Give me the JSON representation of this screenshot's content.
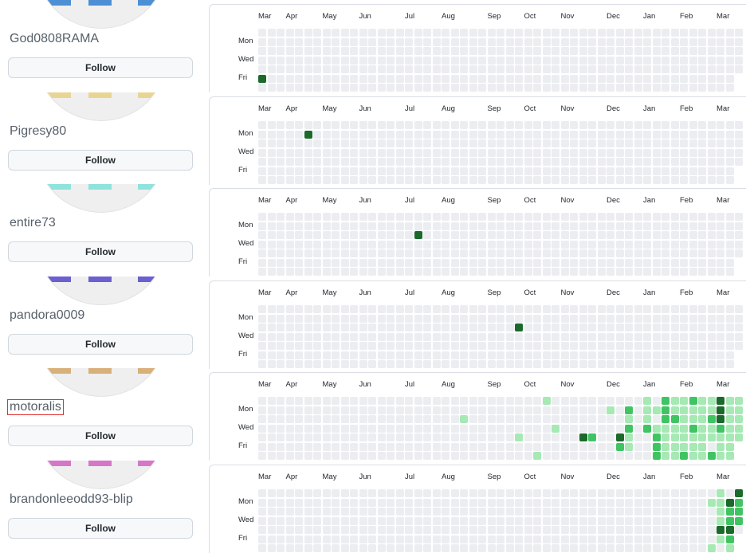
{
  "follow_label": "Follow",
  "day_labels": [
    {
      "row": 1,
      "label": "Mon"
    },
    {
      "row": 3,
      "label": "Wed"
    },
    {
      "row": 5,
      "label": "Fri"
    }
  ],
  "months": [
    {
      "col": 0,
      "label": "Mar"
    },
    {
      "col": 3,
      "label": "Apr"
    },
    {
      "col": 7,
      "label": "May"
    },
    {
      "col": 11,
      "label": "Jun"
    },
    {
      "col": 16,
      "label": "Jul"
    },
    {
      "col": 20,
      "label": "Aug"
    },
    {
      "col": 25,
      "label": "Sep"
    },
    {
      "col": 29,
      "label": "Oct"
    },
    {
      "col": 33,
      "label": "Nov"
    },
    {
      "col": 38,
      "label": "Dec"
    },
    {
      "col": 42,
      "label": "Jan"
    },
    {
      "col": 46,
      "label": "Feb"
    },
    {
      "col": 50,
      "label": "Mar"
    }
  ],
  "level_colors": [
    "#ebedf0",
    "#a6e9b4",
    "#40c463",
    "#1b6a2b"
  ],
  "users": [
    {
      "username": "God0808RAMA",
      "avatar_color": "#4d8fd4",
      "highlighted": false,
      "contributions": [
        [
          0,
          5,
          3
        ]
      ]
    },
    {
      "username": "Pigresy80",
      "avatar_color": "#e8d593",
      "highlighted": false,
      "contributions": [
        [
          5,
          1,
          3
        ]
      ]
    },
    {
      "username": "entire73",
      "avatar_color": "#8ee3dc",
      "highlighted": false,
      "contributions": [
        [
          17,
          2,
          3
        ]
      ]
    },
    {
      "username": "pandora0009",
      "avatar_color": "#6c5fd0",
      "highlighted": false,
      "contributions": [
        [
          28,
          2,
          3
        ]
      ]
    },
    {
      "username": "motoralis",
      "avatar_color": "#d8b07a",
      "highlighted": true,
      "contributions": [
        [
          31,
          0,
          1
        ],
        [
          42,
          0,
          1
        ],
        [
          44,
          0,
          2
        ],
        [
          45,
          0,
          1
        ],
        [
          46,
          0,
          1
        ],
        [
          47,
          0,
          2
        ],
        [
          48,
          0,
          1
        ],
        [
          49,
          0,
          1
        ],
        [
          50,
          0,
          3
        ],
        [
          51,
          0,
          1
        ],
        [
          52,
          0,
          1
        ],
        [
          38,
          1,
          1
        ],
        [
          40,
          1,
          2
        ],
        [
          42,
          1,
          1
        ],
        [
          43,
          1,
          1
        ],
        [
          44,
          1,
          2
        ],
        [
          45,
          1,
          1
        ],
        [
          46,
          1,
          1
        ],
        [
          47,
          1,
          1
        ],
        [
          48,
          1,
          1
        ],
        [
          49,
          1,
          1
        ],
        [
          50,
          1,
          3
        ],
        [
          51,
          1,
          1
        ],
        [
          52,
          1,
          1
        ],
        [
          22,
          2,
          1
        ],
        [
          40,
          2,
          1
        ],
        [
          42,
          2,
          1
        ],
        [
          44,
          2,
          2
        ],
        [
          45,
          2,
          2
        ],
        [
          46,
          2,
          1
        ],
        [
          47,
          2,
          1
        ],
        [
          48,
          2,
          1
        ],
        [
          49,
          2,
          2
        ],
        [
          50,
          2,
          3
        ],
        [
          51,
          2,
          1
        ],
        [
          52,
          2,
          1
        ],
        [
          32,
          3,
          1
        ],
        [
          40,
          3,
          2
        ],
        [
          42,
          3,
          2
        ],
        [
          43,
          3,
          1
        ],
        [
          44,
          3,
          1
        ],
        [
          45,
          3,
          1
        ],
        [
          46,
          3,
          1
        ],
        [
          47,
          3,
          2
        ],
        [
          48,
          3,
          1
        ],
        [
          49,
          3,
          1
        ],
        [
          50,
          3,
          2
        ],
        [
          51,
          3,
          1
        ],
        [
          52,
          3,
          1
        ],
        [
          28,
          4,
          1
        ],
        [
          35,
          4,
          3
        ],
        [
          36,
          4,
          2
        ],
        [
          39,
          4,
          3
        ],
        [
          40,
          4,
          1
        ],
        [
          43,
          4,
          2
        ],
        [
          44,
          4,
          1
        ],
        [
          45,
          4,
          1
        ],
        [
          46,
          4,
          1
        ],
        [
          47,
          4,
          1
        ],
        [
          48,
          4,
          1
        ],
        [
          49,
          4,
          1
        ],
        [
          50,
          4,
          1
        ],
        [
          51,
          4,
          1
        ],
        [
          52,
          4,
          1
        ],
        [
          39,
          5,
          2
        ],
        [
          40,
          5,
          1
        ],
        [
          43,
          5,
          2
        ],
        [
          44,
          5,
          1
        ],
        [
          45,
          5,
          1
        ],
        [
          46,
          5,
          1
        ],
        [
          47,
          5,
          1
        ],
        [
          48,
          5,
          1
        ],
        [
          50,
          5,
          1
        ],
        [
          51,
          5,
          1
        ],
        [
          30,
          6,
          1
        ],
        [
          43,
          6,
          2
        ],
        [
          44,
          6,
          1
        ],
        [
          45,
          6,
          1
        ],
        [
          46,
          6,
          2
        ],
        [
          47,
          6,
          1
        ],
        [
          48,
          6,
          1
        ],
        [
          49,
          6,
          2
        ],
        [
          50,
          6,
          1
        ],
        [
          51,
          6,
          1
        ]
      ]
    },
    {
      "username": "brandonleeodd93-blip",
      "avatar_color": "#d676c8",
      "highlighted": false,
      "contributions": [
        [
          50,
          0,
          1
        ],
        [
          52,
          0,
          3
        ],
        [
          49,
          1,
          1
        ],
        [
          50,
          1,
          1
        ],
        [
          51,
          1,
          3
        ],
        [
          52,
          1,
          2
        ],
        [
          50,
          2,
          1
        ],
        [
          51,
          2,
          2
        ],
        [
          52,
          2,
          2
        ],
        [
          50,
          3,
          1
        ],
        [
          51,
          3,
          2
        ],
        [
          52,
          3,
          2
        ],
        [
          50,
          4,
          3
        ],
        [
          51,
          4,
          3
        ],
        [
          50,
          5,
          1
        ],
        [
          51,
          5,
          2
        ],
        [
          49,
          6,
          1
        ],
        [
          51,
          6,
          1
        ]
      ]
    }
  ]
}
